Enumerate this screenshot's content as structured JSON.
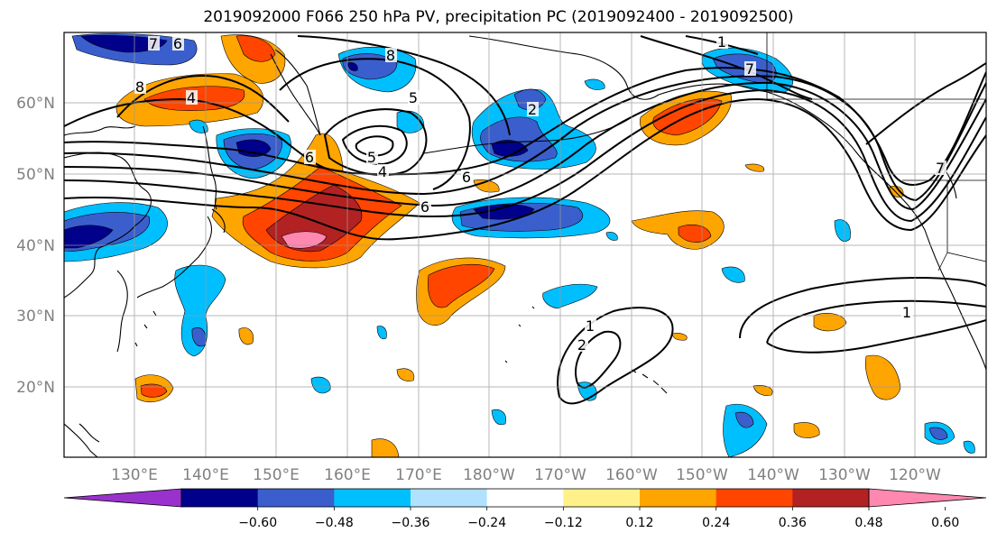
{
  "title": "2019092000 F066 250 hPa PV, precipitation PC (2019092400 - 2019092500)",
  "lon_ticks": [
    "130°E",
    "140°E",
    "150°E",
    "160°E",
    "170°E",
    "180°W",
    "170°W",
    "160°W",
    "150°W",
    "140°W",
    "130°W",
    "120°W"
  ],
  "lat_ticks": [
    "60°N",
    "50°N",
    "40°N",
    "30°N",
    "20°N"
  ],
  "colorbar": {
    "colors": [
      "#9932cc",
      "#00008b",
      "#3a5fcd",
      "#00bfff",
      "#b0e2ff",
      "#ffffff",
      "#fff08a",
      "#ffa500",
      "#ff4500",
      "#b22222",
      "#ff88b0"
    ],
    "labels": [
      "−0.60",
      "−0.48",
      "−0.36",
      "−0.24",
      "−0.12",
      "0.12",
      "0.24",
      "0.36",
      "0.48",
      "0.60"
    ]
  },
  "pv_contour_labels": [
    "6",
    "7",
    "8",
    "4",
    "6",
    "5",
    "4",
    "5",
    "6",
    "6",
    "7",
    "8",
    "2",
    "1",
    "2",
    "1",
    "7",
    "1"
  ],
  "colors": {
    "neg_strong": "#00008b",
    "neg_mid": "#3a5fcd",
    "neg_light": "#00bfff",
    "pos_light": "#ffa500",
    "pos_mid": "#ff4500",
    "pos_strong": "#b22222",
    "pos_max": "#ff88b0"
  }
}
